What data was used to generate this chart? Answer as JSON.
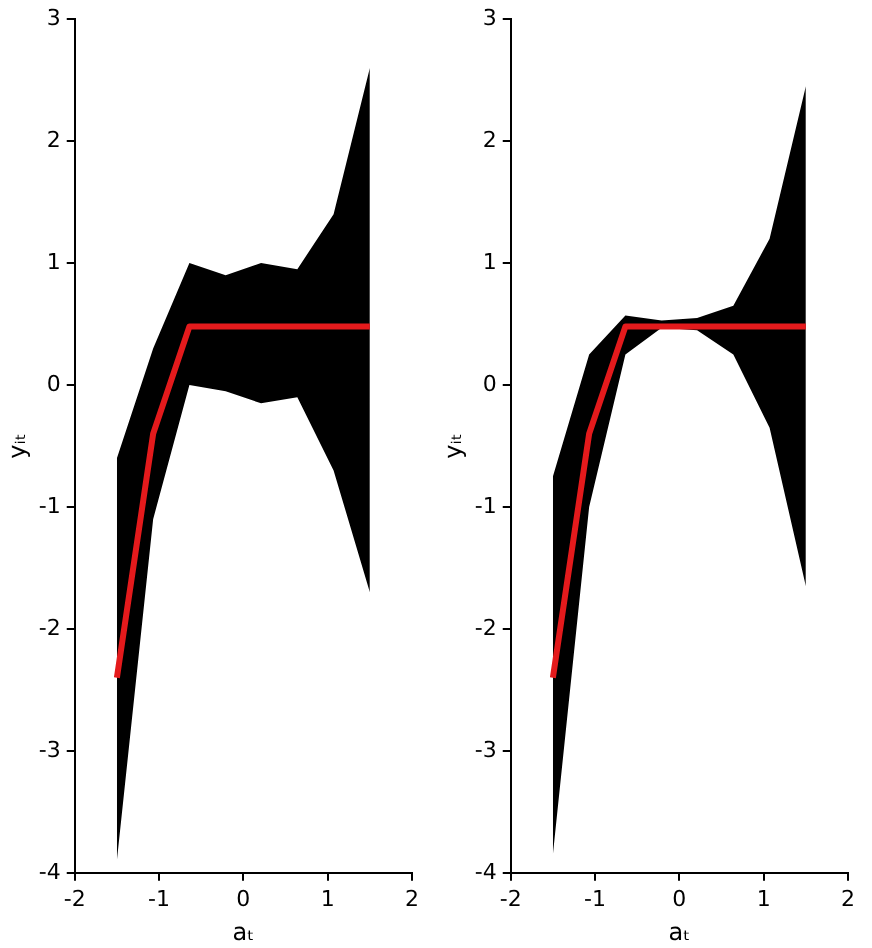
{
  "chart_data": [
    {
      "type": "line",
      "xlabel": "aₜ",
      "ylabel": "yᵢₜ",
      "x": [
        -1.5,
        -1.07,
        -0.64,
        -0.21,
        0.21,
        0.64,
        1.07,
        1.5
      ],
      "xlim": [
        -2,
        2
      ],
      "xticks": [
        -2,
        -1,
        0,
        1,
        2
      ],
      "ylim": [
        -4,
        3
      ],
      "yticks": [
        -4,
        -3,
        -2,
        -1,
        0,
        1,
        2,
        3
      ],
      "grid": false,
      "legend": false,
      "series": [
        {
          "color": "#e41a1c",
          "values": [
            -2.4,
            -0.4,
            0.48,
            0.48,
            0.48,
            0.48,
            0.48,
            0.48
          ],
          "lower": [
            -3.9,
            -1.1,
            0.0,
            -0.05,
            -0.15,
            -0.1,
            -0.7,
            -1.7
          ],
          "upper": [
            -0.6,
            0.3,
            1.0,
            0.9,
            1.0,
            0.95,
            1.4,
            2.6
          ]
        }
      ]
    },
    {
      "type": "line",
      "xlabel": "aₜ",
      "ylabel": "yᵢₜ",
      "x": [
        -1.5,
        -1.07,
        -0.64,
        -0.21,
        0.21,
        0.64,
        1.07,
        1.5
      ],
      "xlim": [
        -2,
        2
      ],
      "xticks": [
        -2,
        -1,
        0,
        1,
        2
      ],
      "ylim": [
        -4,
        3
      ],
      "yticks": [
        -4,
        -3,
        -2,
        -1,
        0,
        1,
        2,
        3
      ],
      "grid": false,
      "legend": false,
      "series": [
        {
          "color": "#e41a1c",
          "values": [
            -2.4,
            -0.4,
            0.48,
            0.48,
            0.48,
            0.48,
            0.48,
            0.48
          ],
          "lower": [
            -3.85,
            -1.0,
            0.25,
            0.47,
            0.45,
            0.25,
            -0.35,
            -1.65
          ],
          "upper": [
            -0.75,
            0.25,
            0.57,
            0.53,
            0.55,
            0.65,
            1.2,
            2.45
          ]
        }
      ]
    }
  ]
}
